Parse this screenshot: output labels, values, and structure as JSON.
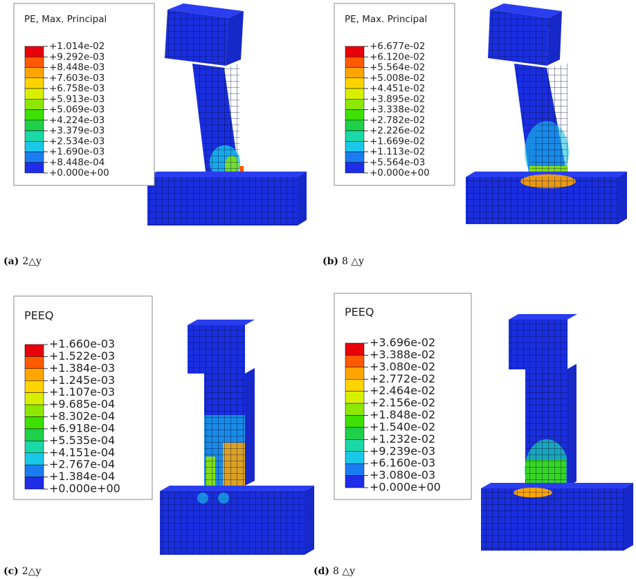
{
  "panels": [
    {
      "legend": {
        "title": "PE, Max. Principal",
        "labels": [
          "+1.014e-02",
          "+9.292e-03",
          "+8.448e-03",
          "+7.603e-03",
          "+6.758e-03",
          "+5.913e-03",
          "+5.069e-03",
          "+4.224e-03",
          "+3.379e-03",
          "+2.534e-03",
          "+1.690e-03",
          "+8.448e-04",
          "+0.000e+00"
        ]
      },
      "caption": {
        "label": "(a)",
        "text": "2△y"
      }
    },
    {
      "legend": {
        "title": "PE, Max. Principal",
        "labels": [
          "+6.677e-02",
          "+6.120e-02",
          "+5.564e-02",
          "+5.008e-02",
          "+4.451e-02",
          "+3.895e-02",
          "+3.338e-02",
          "+2.782e-02",
          "+2.226e-02",
          "+1.669e-02",
          "+1.113e-02",
          "+5.564e-03",
          "+0.000e+00"
        ]
      },
      "caption": {
        "label": "(b)",
        "text": "8 △y"
      }
    },
    {
      "legend": {
        "title": "PEEQ",
        "labels": [
          "+1.660e-03",
          "+1.522e-03",
          "+1.384e-03",
          "+1.245e-03",
          "+1.107e-03",
          "+9.685e-04",
          "+8.302e-04",
          "+6.918e-04",
          "+5.535e-04",
          "+4.151e-04",
          "+2.767e-04",
          "+1.384e-04",
          "+0.000e+00"
        ]
      },
      "caption": {
        "label": "(c)",
        "text": "2△y"
      }
    },
    {
      "legend": {
        "title": "PEEQ",
        "labels": [
          "+3.696e-02",
          "+3.388e-02",
          "+3.080e-02",
          "+2.772e-02",
          "+2.464e-02",
          "+2.156e-02",
          "+1.848e-02",
          "+1.540e-02",
          "+1.232e-02",
          "+9.239e-03",
          "+6.160e-03",
          "+3.080e-03",
          "+0.000e+00"
        ]
      },
      "caption": {
        "label": "(d)",
        "text": "8 △y"
      }
    }
  ]
}
